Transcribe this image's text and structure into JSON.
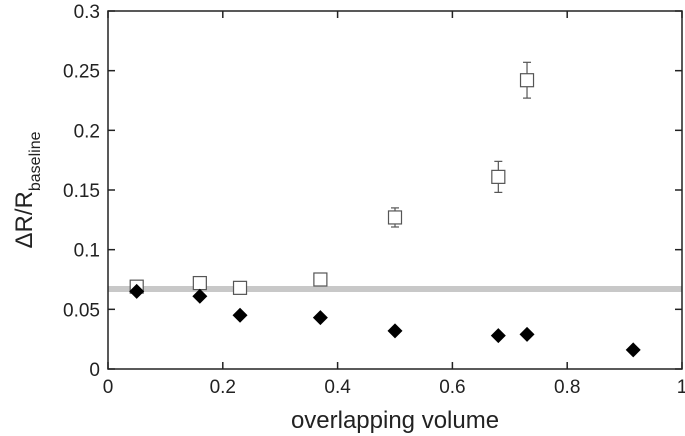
{
  "chart_data": {
    "type": "scatter",
    "title": "",
    "xlabel": "overlapping volume",
    "ylabel": {
      "main": "ΔR/R",
      "subscript": "baseline"
    },
    "xlim": [
      0,
      1
    ],
    "ylim": [
      0,
      0.3
    ],
    "xticks": [
      0,
      0.2,
      0.4,
      0.6,
      0.8,
      1
    ],
    "xtick_labels": [
      "0",
      "0.2",
      "0.4",
      "0.6",
      "0.8",
      "1"
    ],
    "yticks": [
      0,
      0.05,
      0.1,
      0.15,
      0.2,
      0.25,
      0.3
    ],
    "ytick_labels": [
      "0",
      "0.05",
      "0.1",
      "0.15",
      "0.2",
      "0.25",
      "0.3"
    ],
    "grid": false,
    "legend": false,
    "reference_line": {
      "y": 0.067,
      "color": "#c8c8c8"
    },
    "series": [
      {
        "marker": "open-square",
        "color": "#555555",
        "x": [
          0.05,
          0.16,
          0.23,
          0.37,
          0.5,
          0.68,
          0.73
        ],
        "y": [
          0.069,
          0.072,
          0.068,
          0.075,
          0.127,
          0.161,
          0.242
        ],
        "error": [
          0.003,
          0.003,
          0.003,
          0.005,
          0.008,
          0.013,
          0.015
        ]
      },
      {
        "marker": "filled-diamond",
        "color": "#000000",
        "x": [
          0.05,
          0.16,
          0.23,
          0.37,
          0.5,
          0.68,
          0.73,
          0.915
        ],
        "y": [
          0.065,
          0.061,
          0.045,
          0.043,
          0.032,
          0.028,
          0.029,
          0.016
        ]
      }
    ]
  }
}
